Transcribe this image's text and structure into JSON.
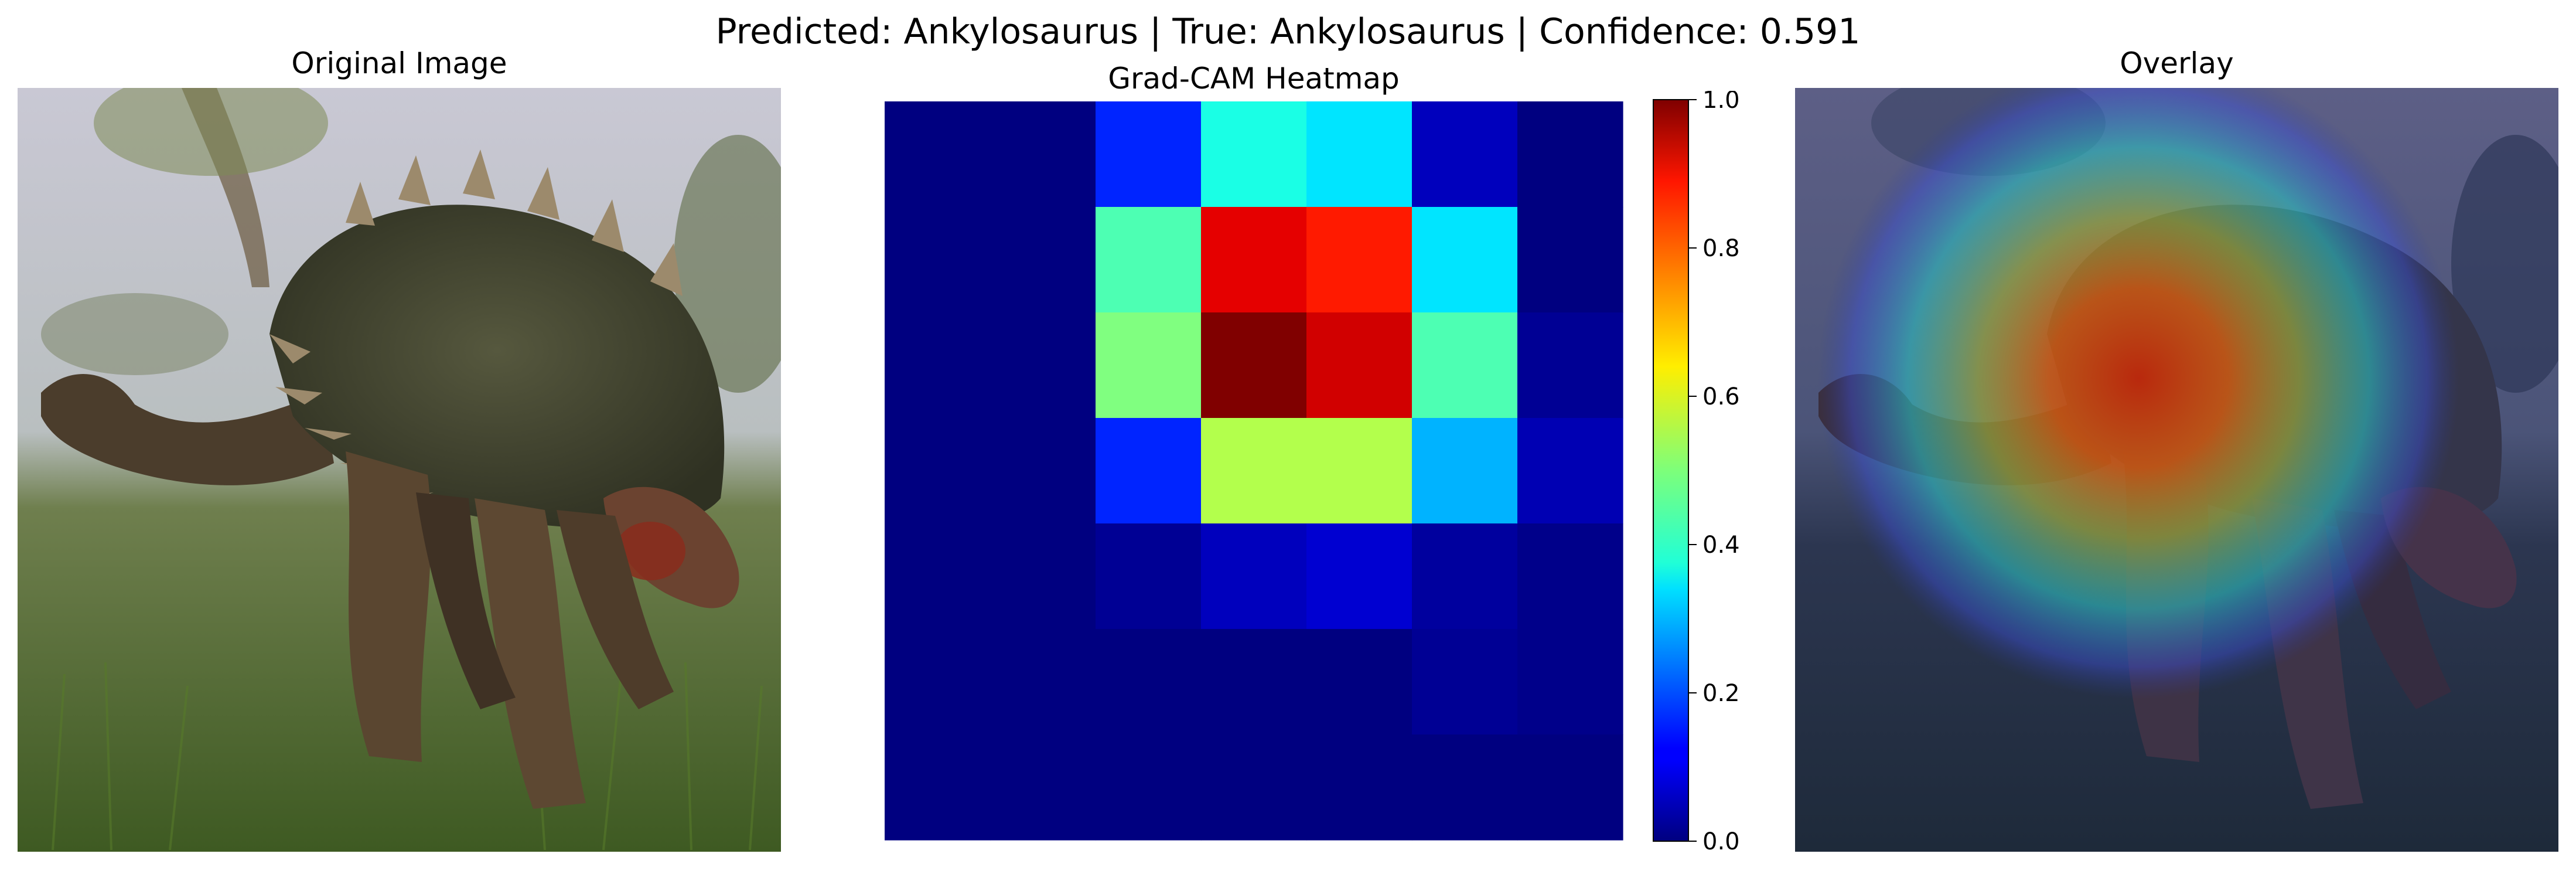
{
  "suptitle": "Predicted: Ankylosaurus | True: Ankylosaurus | Confidence: 0.591",
  "panels": {
    "original_title": "Original Image",
    "heatmap_title": "Grad-CAM Heatmap",
    "overlay_title": "Overlay"
  },
  "chart_data": {
    "type": "heatmap",
    "title": "Grad-CAM Heatmap",
    "colormap": "jet",
    "rows": 7,
    "cols": 7,
    "values": [
      [
        0.0,
        0.0,
        0.16,
        0.4,
        0.35,
        0.06,
        0.0
      ],
      [
        0.0,
        0.0,
        0.45,
        0.9,
        0.85,
        0.35,
        0.0
      ],
      [
        0.0,
        0.0,
        0.5,
        1.0,
        0.92,
        0.45,
        0.02
      ],
      [
        0.0,
        0.0,
        0.16,
        0.55,
        0.55,
        0.3,
        0.05
      ],
      [
        0.0,
        0.0,
        0.02,
        0.06,
        0.08,
        0.03,
        0.01
      ],
      [
        0.0,
        0.0,
        0.0,
        0.0,
        0.0,
        0.02,
        0.01
      ],
      [
        0.0,
        0.0,
        0.0,
        0.0,
        0.0,
        0.0,
        0.0
      ]
    ],
    "colorbar": {
      "range": [
        0.0,
        1.0
      ],
      "ticks": [
        "0.0",
        "0.2",
        "0.4",
        "0.6",
        "0.8",
        "1.0"
      ]
    },
    "grid": false
  }
}
